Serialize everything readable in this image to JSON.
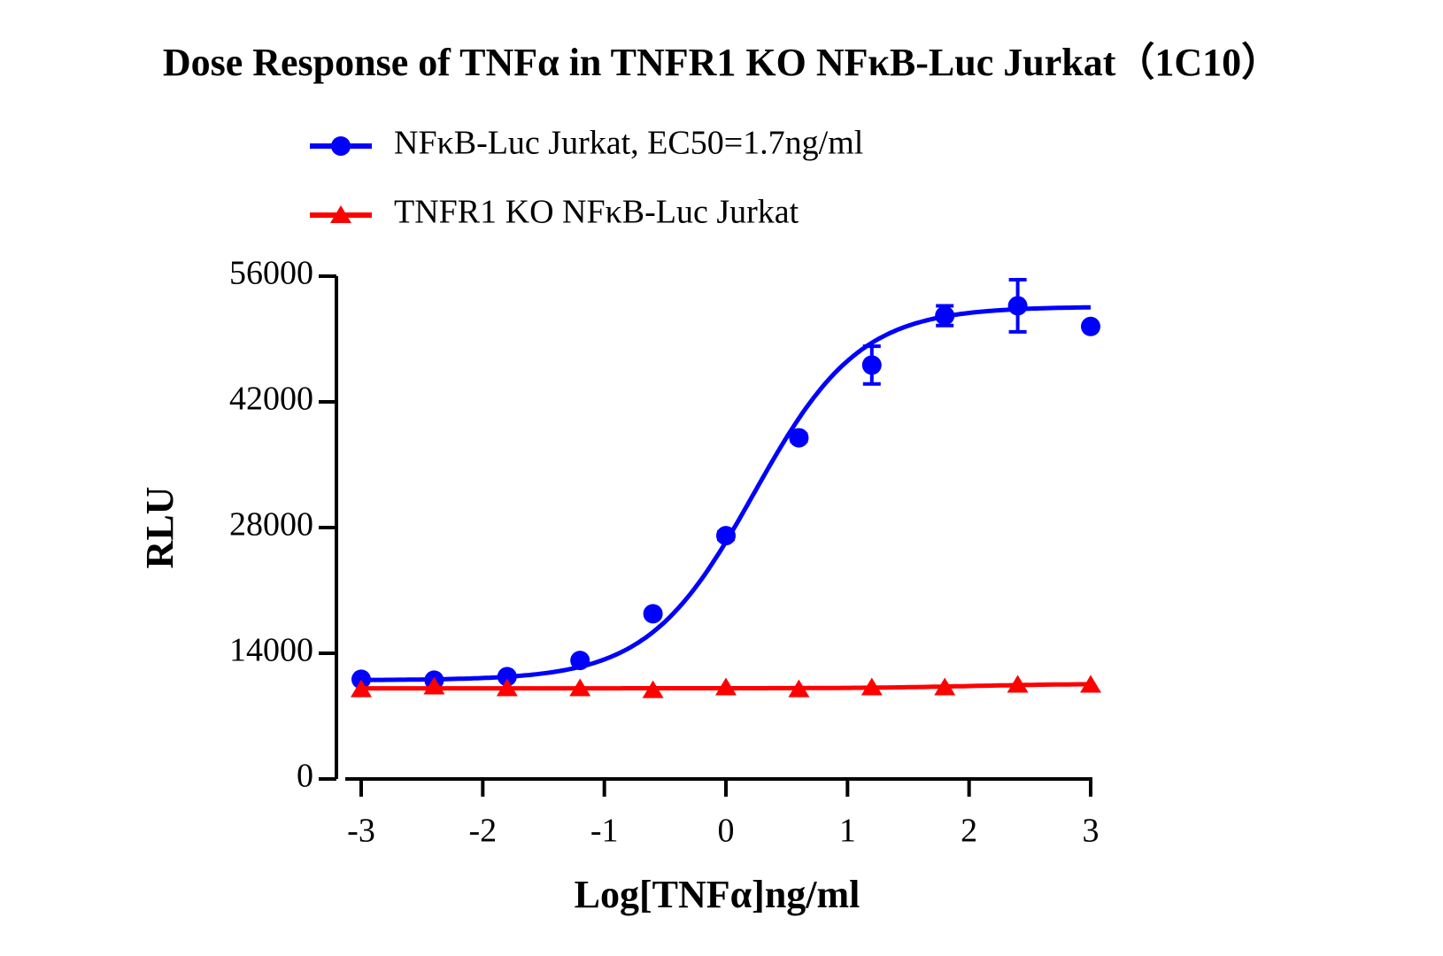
{
  "chart_data": {
    "type": "dose-response",
    "title": "Dose Response of  TNFα in TNFR1 KO NFκB-Luc Jurkat（1C10）",
    "x_label": "Log[TNFα]ng/ml",
    "y_label": "RLU",
    "x": [
      -3,
      -2.4,
      -1.8,
      -1.2,
      -0.6,
      0,
      0.6,
      1.2,
      1.8,
      2.4,
      3
    ],
    "xlim": [
      -3,
      3
    ],
    "xticks": [
      -3,
      -2,
      -1,
      0,
      1,
      2,
      3
    ],
    "ylim": [
      0,
      56000
    ],
    "yticks": [
      0,
      14000,
      28000,
      42000,
      56000
    ],
    "series": [
      {
        "name": "NFκB-Luc Jurkat, EC50=1.7ng/ml",
        "color": "#0000ff",
        "marker": "circle",
        "values": [
          11100,
          11000,
          11400,
          13200,
          18400,
          27100,
          38000,
          46100,
          51600,
          52700,
          50400
        ],
        "errors": [
          200,
          200,
          200,
          300,
          300,
          400,
          400,
          2100,
          1100,
          2900,
          300
        ],
        "fit": {
          "bottom": 11000,
          "top": 52600,
          "logec50": 0.23,
          "hill": 1
        }
      },
      {
        "name": "TNFR1 KO NFκB-Luc Jurkat",
        "color": "#ff0000",
        "marker": "triangle",
        "values": [
          10000,
          10300,
          10100,
          10100,
          9900,
          10200,
          10000,
          10200,
          10200,
          10500,
          10500
        ],
        "fit": {
          "bottom": 10100,
          "top": 10600,
          "logec50": 2,
          "hill": 1
        }
      }
    ]
  }
}
